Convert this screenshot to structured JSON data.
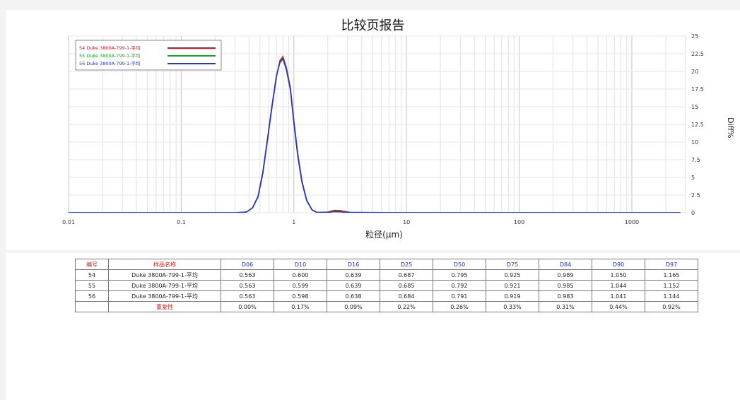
{
  "report_title": "比较页报告",
  "chart_data": {
    "type": "line",
    "title": "比较页报告",
    "xlabel": "粒径(μm)",
    "ylabel": "Diff%",
    "xscale": "log",
    "xlim": [
      0.01,
      3000
    ],
    "ylim": [
      0,
      25
    ],
    "x_tick_labels": [
      "0.01",
      "0.1",
      "1",
      "10",
      "100",
      "1000"
    ],
    "x_tick_values": [
      0.01,
      0.1,
      1,
      10,
      100,
      1000
    ],
    "y_tick_labels": [
      "0",
      "2.5",
      "5",
      "7.5",
      "10",
      "12.5",
      "15",
      "17.5",
      "20",
      "22.5",
      "25"
    ],
    "y_tick_values": [
      0,
      2.5,
      5,
      7.5,
      10,
      12.5,
      15,
      17.5,
      20,
      22.5,
      25
    ],
    "grid": true,
    "legend_position": "top-left",
    "series": [
      {
        "name": "54 Duke 3800A-799-1-平均",
        "color": "#d0141e",
        "x": [
          0.01,
          0.3,
          0.38,
          0.43,
          0.48,
          0.53,
          0.58,
          0.64,
          0.7,
          0.75,
          0.8,
          0.86,
          0.93,
          1.0,
          1.08,
          1.18,
          1.3,
          1.45,
          1.6,
          2.0,
          2.3,
          2.6,
          2.9,
          3.2,
          10,
          100,
          1000,
          2700
        ],
        "y": [
          0,
          0,
          0.1,
          0.7,
          2.2,
          5.5,
          10,
          15,
          19.2,
          21.5,
          22.1,
          20.5,
          17.7,
          13,
          8.5,
          4.5,
          1.8,
          0.4,
          0.05,
          0.1,
          0.35,
          0.3,
          0.15,
          0.05,
          0,
          0,
          0,
          0
        ]
      },
      {
        "name": "55 Duke 3800A-799-1-平均",
        "color": "#16a02a",
        "x": [
          0.01,
          0.3,
          0.38,
          0.43,
          0.48,
          0.53,
          0.58,
          0.64,
          0.7,
          0.75,
          0.8,
          0.86,
          0.93,
          1.0,
          1.08,
          1.18,
          1.3,
          1.45,
          1.6,
          2.0,
          2.3,
          2.6,
          2.9,
          3.2,
          10,
          100,
          1000,
          2700
        ],
        "y": [
          0,
          0,
          0.1,
          0.7,
          2.2,
          5.6,
          10.1,
          15.1,
          19.3,
          21.3,
          21.9,
          20.3,
          17.5,
          12.8,
          8.3,
          4.4,
          1.8,
          0.4,
          0.05,
          0.05,
          0.2,
          0.15,
          0.08,
          0.03,
          0,
          0,
          0,
          0
        ]
      },
      {
        "name": "56 Duke 3800A-799-1-平均",
        "color": "#2730d8",
        "x": [
          0.01,
          0.3,
          0.38,
          0.43,
          0.48,
          0.53,
          0.58,
          0.64,
          0.7,
          0.75,
          0.8,
          0.86,
          0.93,
          1.0,
          1.08,
          1.18,
          1.3,
          1.45,
          1.6,
          2.0,
          2.3,
          2.6,
          2.9,
          3.2,
          10,
          100,
          1000,
          2700
        ],
        "y": [
          0,
          0,
          0.1,
          0.7,
          2.3,
          5.7,
          10.2,
          15.2,
          19.4,
          21.2,
          21.8,
          20.2,
          17.4,
          12.7,
          8.2,
          4.3,
          1.7,
          0.4,
          0.05,
          0.05,
          0.15,
          0.12,
          0.06,
          0.02,
          0,
          0,
          0,
          0
        ]
      }
    ]
  },
  "table": {
    "headers": [
      "编号",
      "样品名称",
      "D06",
      "D10",
      "D16",
      "D25",
      "D50",
      "D75",
      "D84",
      "D90",
      "D97"
    ],
    "rows": [
      [
        "54",
        "Duke 3800A-799-1-平均",
        "0.563",
        "0.600",
        "0.639",
        "0.687",
        "0.795",
        "0.925",
        "0.989",
        "1.050",
        "1.165"
      ],
      [
        "55",
        "Duke 3800A-799-1-平均",
        "0.563",
        "0.599",
        "0.639",
        "0.685",
        "0.792",
        "0.921",
        "0.985",
        "1.044",
        "1.152"
      ],
      [
        "56",
        "Duke 3800A-799-1-平均",
        "0.563",
        "0.598",
        "0.638",
        "0.684",
        "0.791",
        "0.919",
        "0.983",
        "1.041",
        "1.144"
      ],
      [
        "",
        "重复性",
        "0.00%",
        "0.17%",
        "0.09%",
        "0.22%",
        "0.26%",
        "0.33%",
        "0.31%",
        "0.44%",
        "0.92%"
      ]
    ]
  }
}
